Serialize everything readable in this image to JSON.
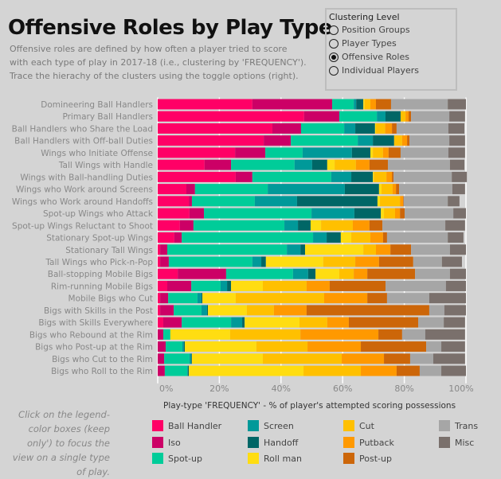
{
  "header": {
    "title": "Offensive Roles by Play Type",
    "subtitle": [
      "Offensive roles are defined by how often a player tried to score",
      "with each type of play in 2017-18 (i.e., clustering by 'FREQUENCY').",
      "Trace the hierachy of the clusters using the toggle options (right)."
    ]
  },
  "clustering": {
    "title": "Clustering Level",
    "options": [
      "Position Groups",
      "Player Types",
      "Offensive Roles",
      "Individual Players"
    ],
    "selected": "Offensive Roles"
  },
  "note": "Click on the legend-color boxes (keep only') to focus the view on a single type of play.",
  "chart_data": {
    "type": "bar",
    "orientation": "horizontal",
    "stacked": true,
    "xlabel": "Play-type 'FREQUENCY' - % of player's attempted scoring possessions",
    "xlim": [
      0,
      100
    ],
    "xticks": [
      "0%",
      "20%",
      "40%",
      "60%",
      "80%",
      "100%"
    ],
    "grid": true,
    "legend_position": "bottom",
    "categories": [
      "Domineering Ball Handlers",
      "Primary Ball Handlers",
      "Ball Handlers who Share the Load",
      "Ball Handlers with Off-ball Duties",
      "Wings who Initiate Offense",
      "Tall Wings with Handle",
      "Wings with Ball-handling Duties",
      "Wings who Work around Screens",
      "Wings who Work around Handoffs",
      "Spot-up Wings who Attack",
      "Spot-up Wings Reluctant to Shoot",
      "Stationary Spot-up Wings",
      "Stationary Tall Wings",
      "Tall Wings who Pick-n-Pop",
      "Ball-stopping Mobile Bigs",
      "Rim-running Mobile Bigs",
      "Mobile Bigs who Cut",
      "Bigs with Skills in the Post",
      "Bigs with Skills Everywhere",
      "Bigs who Rebound at the Rim",
      "Bigs who Post-up at the Rim",
      "Bigs who Cut to the Rim",
      "Bigs who Roll to the Rim"
    ],
    "series": [
      {
        "name": "Ball Handler",
        "color": "#ff0066",
        "values": [
          30.7,
          47.5,
          37.2,
          34.4,
          25.1,
          15.2,
          25.3,
          9.3,
          10.1,
          10.3,
          7.2,
          5.4,
          0.8,
          0.8,
          6.5,
          3.1,
          0.8,
          0.8,
          1.8,
          0,
          0,
          0,
          0
        ]
      },
      {
        "name": "Iso",
        "color": "#cc0066",
        "values": [
          25.9,
          11.4,
          9.3,
          8.8,
          9.8,
          8.6,
          5.4,
          2.8,
          1.0,
          4.7,
          4.4,
          2.4,
          2.3,
          2.8,
          15.7,
          7.8,
          2.6,
          4.4,
          6.0,
          1.8,
          2.6,
          2.1,
          2.3
        ]
      },
      {
        "name": "Spot-up",
        "color": "#00cc99",
        "values": [
          7.0,
          12.2,
          14.0,
          21.7,
          12.1,
          20.6,
          25.6,
          23.6,
          20.4,
          34.9,
          29.5,
          42.6,
          38.8,
          27.1,
          21.7,
          9.5,
          9.5,
          9.0,
          16.0,
          2.3,
          5.4,
          8.2,
          7.3
        ]
      },
      {
        "name": "Screen",
        "color": "#009999",
        "values": [
          0.8,
          2.8,
          3.6,
          4.9,
          16.0,
          5.7,
          6.5,
          25.0,
          13.7,
          13.9,
          4.4,
          4.4,
          4.4,
          2.9,
          4.9,
          2.1,
          1.3,
          1.8,
          3.6,
          0,
          0.5,
          0.6,
          0.2
        ]
      },
      {
        "name": "Handoff",
        "color": "#006666",
        "values": [
          2.3,
          4.9,
          6.4,
          6.9,
          6.0,
          4.9,
          7.0,
          11.1,
          26.1,
          8.6,
          4.1,
          4.6,
          1.5,
          1.5,
          2.4,
          1.3,
          0.3,
          0.3,
          0.8,
          0,
          0.3,
          0.2,
          0.3
        ]
      },
      {
        "name": "Roll man",
        "color": "#ffdd11",
        "values": [
          0.4,
          0,
          0.3,
          0,
          0.8,
          2.4,
          0.3,
          0.8,
          0.8,
          1.0,
          3.4,
          3.4,
          18.9,
          18.6,
          7.7,
          10.3,
          10.8,
          12.6,
          17.8,
          19.4,
          23.2,
          23.0,
          37.2
        ]
      },
      {
        "name": "Cut",
        "color": "#ffc000",
        "values": [
          1.9,
          1.6,
          3.0,
          2.6,
          3.3,
          6.9,
          4.1,
          3.6,
          6.5,
          3.6,
          10.3,
          6.2,
          4.1,
          10.4,
          4.7,
          14.2,
          28.7,
          8.8,
          9.0,
          22.8,
          16.6,
          25.6,
          18.6
        ]
      },
      {
        "name": "Putback",
        "color": "#ff9900",
        "values": [
          1.8,
          1.0,
          2.2,
          1.6,
          1.8,
          4.4,
          1.8,
          1.1,
          1.0,
          1.6,
          5.4,
          4.1,
          4.7,
          7.7,
          4.4,
          7.5,
          14.0,
          10.6,
          7.0,
          25.3,
          17.3,
          13.7,
          11.6
        ]
      },
      {
        "name": "Post-up",
        "color": "#cc6609",
        "values": [
          4.9,
          0.8,
          1.5,
          0.8,
          3.9,
          6.0,
          0.5,
          1.0,
          0.2,
          1.5,
          4.2,
          1.3,
          6.7,
          11.1,
          15.5,
          18.1,
          6.4,
          39.8,
          22.5,
          7.7,
          21.2,
          8.5,
          7.5
        ]
      },
      {
        "name": "Trans",
        "color": "#a6a6a6",
        "values": [
          18.4,
          12.4,
          16.8,
          12.9,
          15.5,
          20.1,
          18.9,
          17.3,
          14.3,
          15.8,
          20.4,
          19.7,
          12.6,
          9.3,
          11.3,
          19.6,
          13.7,
          4.9,
          8.3,
          7.5,
          4.9,
          7.5,
          7.0
        ]
      },
      {
        "name": "Misc",
        "color": "#7a706c",
        "values": [
          5.9,
          5.1,
          5.2,
          5.1,
          5.4,
          4.7,
          4.9,
          4.1,
          3.8,
          4.1,
          6.4,
          5.1,
          5.2,
          6.5,
          5.2,
          6.5,
          11.9,
          7.0,
          6.9,
          12.9,
          7.7,
          10.3,
          8.0
        ]
      }
    ]
  }
}
